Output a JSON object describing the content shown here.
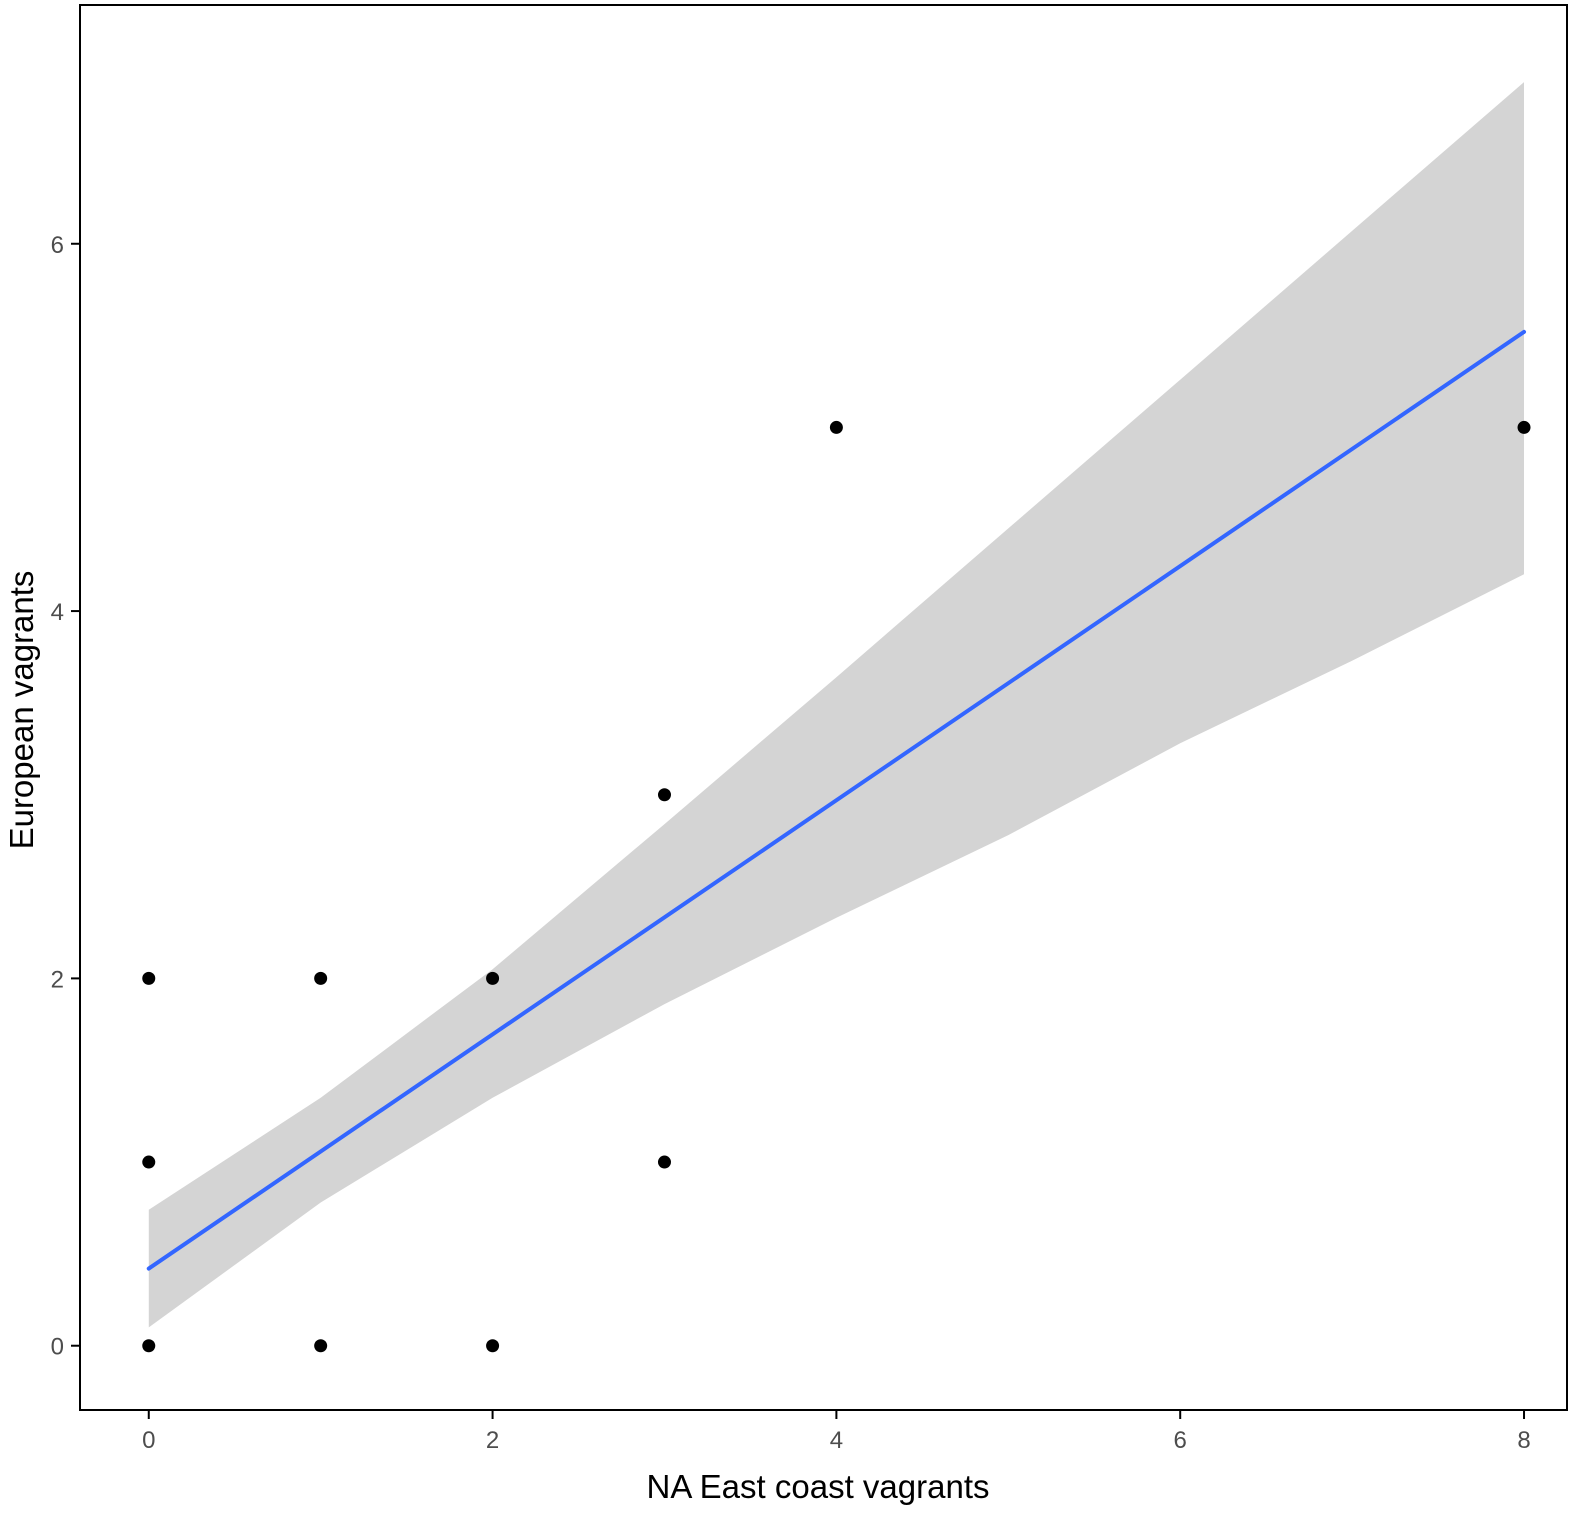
{
  "chart_data": {
    "type": "scatter",
    "xlabel": "NA East coast vagrants",
    "ylabel": "European vagrants",
    "xlim": [
      -0.4,
      8.25
    ],
    "ylim": [
      -0.35,
      7.3
    ],
    "x_ticks": [
      0,
      2,
      4,
      6,
      8
    ],
    "y_ticks": [
      0,
      2,
      4,
      6
    ],
    "x_tick_labels": [
      "0",
      "2",
      "4",
      "6",
      "8"
    ],
    "y_tick_labels": [
      "0",
      "2",
      "4",
      "6"
    ],
    "grid": false,
    "points": [
      {
        "x": 0,
        "y": 2
      },
      {
        "x": 0,
        "y": 1
      },
      {
        "x": 0,
        "y": 0
      },
      {
        "x": 1,
        "y": 2
      },
      {
        "x": 1,
        "y": 0
      },
      {
        "x": 2,
        "y": 2
      },
      {
        "x": 2,
        "y": 0
      },
      {
        "x": 3,
        "y": 3
      },
      {
        "x": 3,
        "y": 1
      },
      {
        "x": 4,
        "y": 5
      },
      {
        "x": 8,
        "y": 5
      }
    ],
    "fit_line": {
      "method": "linear",
      "x": [
        0,
        8
      ],
      "y": [
        0.42,
        5.52
      ]
    },
    "confidence_band": {
      "x": [
        0,
        1,
        2,
        3,
        4,
        5,
        6,
        7,
        8
      ],
      "lower": [
        0.1,
        0.78,
        1.35,
        1.86,
        2.33,
        2.78,
        3.28,
        3.73,
        4.2
      ],
      "upper": [
        0.74,
        1.35,
        2.05,
        2.84,
        3.64,
        4.45,
        5.26,
        6.07,
        6.88
      ]
    },
    "colors": {
      "points": "#000000",
      "fit_line": "#3366ff",
      "band": "#d4d4d4",
      "axis": "#000000",
      "tick_text": "#4d4d4d"
    }
  }
}
